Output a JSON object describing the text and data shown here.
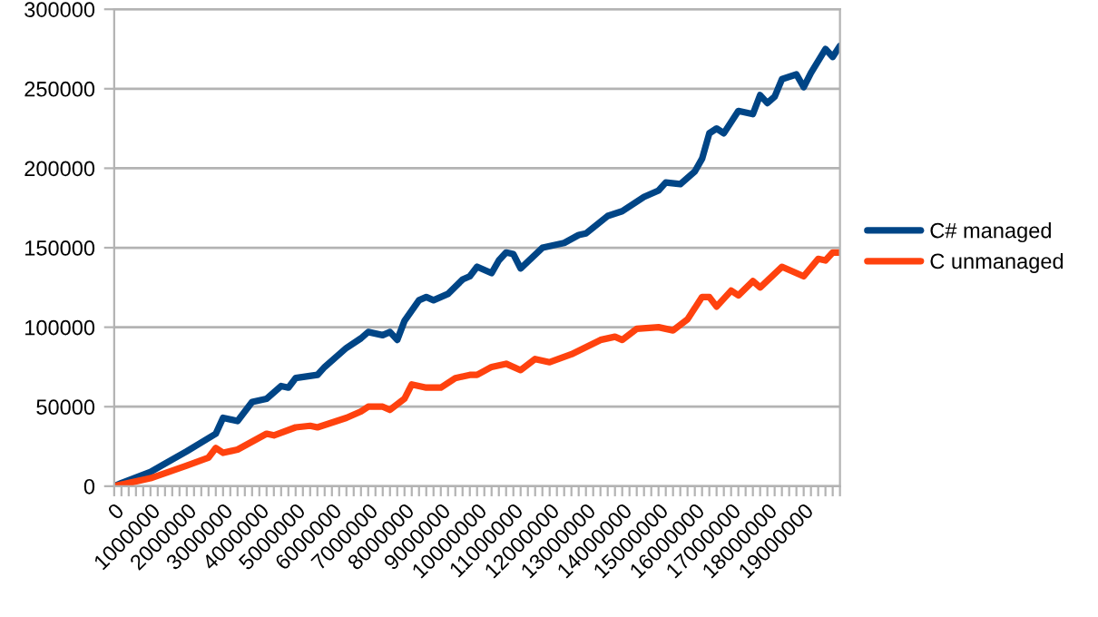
{
  "chart_data": {
    "type": "line",
    "legend": "right",
    "grid": "y",
    "marker": "none",
    "line_style": "solid",
    "xlim": [
      0,
      20000000
    ],
    "ylim": [
      0,
      300000
    ],
    "yticks": [
      0,
      50000,
      100000,
      150000,
      200000,
      250000,
      300000
    ],
    "xticks": [
      0,
      {
        "value": 200000,
        "label": null
      },
      {
        "value": 400000,
        "label": null
      },
      {
        "value": 600000,
        "label": null
      },
      {
        "value": 800000,
        "label": null
      },
      1000000,
      {
        "value": 1200000,
        "label": null
      },
      {
        "value": 1400000,
        "label": null
      },
      {
        "value": 1600000,
        "label": null
      },
      {
        "value": 1800000,
        "label": null
      },
      2000000,
      {
        "value": 2200000,
        "label": null
      },
      {
        "value": 2400000,
        "label": null
      },
      {
        "value": 2600000,
        "label": null
      },
      {
        "value": 2800000,
        "label": null
      },
      3000000,
      {
        "value": 3200000,
        "label": null
      },
      {
        "value": 3400000,
        "label": null
      },
      {
        "value": 3600000,
        "label": null
      },
      {
        "value": 3800000,
        "label": null
      },
      4000000,
      {
        "value": 4200000,
        "label": null
      },
      {
        "value": 4400000,
        "label": null
      },
      {
        "value": 4600000,
        "label": null
      },
      {
        "value": 4800000,
        "label": null
      },
      5000000,
      {
        "value": 5200000,
        "label": null
      },
      {
        "value": 5400000,
        "label": null
      },
      {
        "value": 5600000,
        "label": null
      },
      {
        "value": 5800000,
        "label": null
      },
      6000000,
      {
        "value": 6200000,
        "label": null
      },
      {
        "value": 6400000,
        "label": null
      },
      {
        "value": 6600000,
        "label": null
      },
      {
        "value": 6800000,
        "label": null
      },
      7000000,
      {
        "value": 7200000,
        "label": null
      },
      {
        "value": 7400000,
        "label": null
      },
      {
        "value": 7600000,
        "label": null
      },
      {
        "value": 7800000,
        "label": null
      },
      8000000,
      {
        "value": 8200000,
        "label": null
      },
      {
        "value": 8400000,
        "label": null
      },
      {
        "value": 8600000,
        "label": null
      },
      {
        "value": 8800000,
        "label": null
      },
      9000000,
      {
        "value": 9200000,
        "label": null
      },
      {
        "value": 9400000,
        "label": null
      },
      {
        "value": 9600000,
        "label": null
      },
      {
        "value": 9800000,
        "label": null
      },
      10000000,
      {
        "value": 10200000,
        "label": null
      },
      {
        "value": 10400000,
        "label": null
      },
      {
        "value": 10600000,
        "label": null
      },
      {
        "value": 10800000,
        "label": null
      },
      11000000,
      {
        "value": 11200000,
        "label": null
      },
      {
        "value": 11400000,
        "label": null
      },
      {
        "value": 11600000,
        "label": null
      },
      {
        "value": 11800000,
        "label": null
      },
      12000000,
      {
        "value": 12200000,
        "label": null
      },
      {
        "value": 12400000,
        "label": null
      },
      {
        "value": 12600000,
        "label": null
      },
      {
        "value": 12800000,
        "label": null
      },
      13000000,
      {
        "value": 13200000,
        "label": null
      },
      {
        "value": 13400000,
        "label": null
      },
      {
        "value": 13600000,
        "label": null
      },
      {
        "value": 13800000,
        "label": null
      },
      14000000,
      {
        "value": 14200000,
        "label": null
      },
      {
        "value": 14400000,
        "label": null
      },
      {
        "value": 14600000,
        "label": null
      },
      {
        "value": 14800000,
        "label": null
      },
      15000000,
      {
        "value": 15200000,
        "label": null
      },
      {
        "value": 15400000,
        "label": null
      },
      {
        "value": 15600000,
        "label": null
      },
      {
        "value": 15800000,
        "label": null
      },
      16000000,
      {
        "value": 16200000,
        "label": null
      },
      {
        "value": 16400000,
        "label": null
      },
      {
        "value": 16600000,
        "label": null
      },
      {
        "value": 16800000,
        "label": null
      },
      17000000,
      {
        "value": 17200000,
        "label": null
      },
      {
        "value": 17400000,
        "label": null
      },
      {
        "value": 17600000,
        "label": null
      },
      {
        "value": 17800000,
        "label": null
      },
      18000000,
      {
        "value": 18200000,
        "label": null
      },
      {
        "value": 18400000,
        "label": null
      },
      {
        "value": 18600000,
        "label": null
      },
      {
        "value": 18800000,
        "label": null
      },
      19000000,
      {
        "value": 19200000,
        "label": null
      },
      {
        "value": 19400000,
        "label": null
      },
      {
        "value": 19600000,
        "label": null
      },
      {
        "value": 19800000,
        "label": null
      },
      {
        "value": 20000000,
        "label": null
      }
    ],
    "series": [
      {
        "name": "C# managed",
        "color": "#004586",
        "x": [
          0,
          200000,
          1000000,
          2000000,
          2800000,
          3000000,
          3400000,
          3800000,
          4200000,
          4600000,
          4800000,
          5000000,
          5600000,
          5800000,
          6400000,
          6800000,
          7000000,
          7400000,
          7600000,
          7800000,
          8000000,
          8400000,
          8600000,
          8800000,
          9200000,
          9600000,
          9800000,
          10000000,
          10400000,
          10600000,
          10800000,
          11000000,
          11200000,
          11800000,
          12400000,
          12800000,
          13000000,
          13600000,
          14000000,
          14600000,
          15000000,
          15200000,
          15600000,
          16000000,
          16200000,
          16400000,
          16600000,
          16800000,
          17200000,
          17400000,
          17600000,
          17800000,
          18000000,
          18200000,
          18400000,
          18800000,
          19000000,
          19200000,
          19600000,
          19800000,
          20000000
        ],
        "values": [
          0,
          2000,
          9000,
          22000,
          33000,
          43000,
          41000,
          53000,
          55000,
          63000,
          62000,
          68000,
          70000,
          75000,
          87000,
          93000,
          97000,
          95000,
          97000,
          92000,
          104000,
          117000,
          119000,
          117000,
          121000,
          130000,
          132000,
          138000,
          134000,
          142000,
          147000,
          146000,
          137000,
          150000,
          153000,
          158000,
          159000,
          170000,
          173000,
          182000,
          186000,
          191000,
          190000,
          198000,
          206000,
          222000,
          225000,
          222000,
          236000,
          235000,
          234000,
          246000,
          241000,
          245000,
          256000,
          259000,
          251000,
          260000,
          275000,
          270000,
          277000
        ]
      },
      {
        "name": "C unmanaged",
        "color": "#ff420e",
        "x": [
          0,
          200000,
          1000000,
          2000000,
          2600000,
          2800000,
          3000000,
          3400000,
          3800000,
          4200000,
          4400000,
          5000000,
          5400000,
          5600000,
          6400000,
          6800000,
          7000000,
          7400000,
          7600000,
          8000000,
          8200000,
          8600000,
          9000000,
          9400000,
          9800000,
          10000000,
          10400000,
          10800000,
          11200000,
          11600000,
          12000000,
          12600000,
          13400000,
          13800000,
          14000000,
          14400000,
          15000000,
          15400000,
          15800000,
          16200000,
          16400000,
          16600000,
          17000000,
          17200000,
          17600000,
          17800000,
          18400000,
          19000000,
          19400000,
          19600000,
          19800000,
          20000000
        ],
        "values": [
          0,
          1000,
          5000,
          13000,
          18000,
          24000,
          21000,
          23000,
          28000,
          33000,
          32000,
          37000,
          38000,
          37000,
          43000,
          47000,
          50000,
          50000,
          48000,
          55000,
          64000,
          62000,
          62000,
          68000,
          70000,
          70000,
          75000,
          77000,
          73000,
          80000,
          78000,
          83000,
          92000,
          94000,
          92000,
          99000,
          100000,
          98000,
          105000,
          119000,
          119000,
          113000,
          123000,
          120000,
          129000,
          125000,
          138000,
          132000,
          143000,
          142000,
          147000,
          147000
        ]
      }
    ]
  }
}
